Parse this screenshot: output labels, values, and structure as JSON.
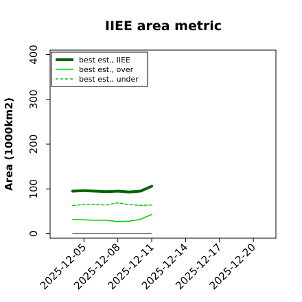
{
  "chart_data": {
    "type": "line",
    "title": "IIEE area metric",
    "ylabel": "Area (1000km2)",
    "xlabel": "",
    "ylim": [
      -10,
      410
    ],
    "yticks": [
      0,
      100,
      200,
      300,
      400
    ],
    "x_ticks": [
      "2025-12-05",
      "2025-12-08",
      "2025-12-11",
      "2025-12-14",
      "2025-12-17",
      "2025-12-20"
    ],
    "xlim": [
      "2025-12-02",
      "2025-12-22"
    ],
    "x": [
      "2025-12-04",
      "2025-12-05",
      "2025-12-06",
      "2025-12-07",
      "2025-12-08",
      "2025-12-09",
      "2025-12-10",
      "2025-12-11"
    ],
    "series": [
      {
        "name": "best est., IIEE",
        "color": "#006400",
        "style": "thick",
        "values": [
          95,
          96,
          95,
          94,
          95,
          93,
          95,
          106
        ]
      },
      {
        "name": "best est., over",
        "color": "#00cc00",
        "style": "solid",
        "values": [
          32,
          31,
          30,
          30,
          27,
          28,
          32,
          43
        ]
      },
      {
        "name": "best est., under",
        "color": "#00cc00",
        "style": "dashed",
        "values": [
          63,
          65,
          65,
          64,
          69,
          65,
          63,
          64
        ]
      },
      {
        "color": "#555555",
        "style": "thin",
        "values": [
          0,
          0,
          0,
          0,
          0,
          0,
          0,
          0
        ]
      }
    ],
    "grid": false,
    "legend_position": "top-left"
  }
}
